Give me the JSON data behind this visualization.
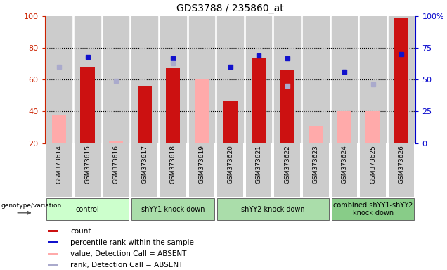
{
  "title": "GDS3788 / 235860_at",
  "samples": [
    "GSM373614",
    "GSM373615",
    "GSM373616",
    "GSM373617",
    "GSM373618",
    "GSM373619",
    "GSM373620",
    "GSM373621",
    "GSM373622",
    "GSM373623",
    "GSM373624",
    "GSM373625",
    "GSM373626"
  ],
  "count_values": [
    null,
    68,
    null,
    56,
    67,
    null,
    47,
    74,
    66,
    null,
    null,
    null,
    99
  ],
  "rank_values": [
    null,
    68,
    null,
    null,
    67,
    null,
    60,
    69,
    67,
    null,
    56,
    null,
    70
  ],
  "absent_value": [
    38,
    null,
    21,
    null,
    null,
    60,
    null,
    null,
    null,
    31,
    40,
    40,
    null
  ],
  "absent_rank": [
    60,
    null,
    49,
    null,
    63,
    null,
    null,
    null,
    45,
    null,
    null,
    46,
    null
  ],
  "groups": [
    {
      "label": "control",
      "start": 0,
      "end": 3
    },
    {
      "label": "shYY1 knock down",
      "start": 3,
      "end": 6
    },
    {
      "label": "shYY2 knock down",
      "start": 6,
      "end": 10
    },
    {
      "label": "combined shYY1-shYY2\nknock down",
      "start": 10,
      "end": 13
    }
  ],
  "y_left_ticks": [
    20,
    40,
    60,
    80,
    100
  ],
  "y_right_ticks": [
    0,
    25,
    50,
    75,
    100
  ],
  "y_right_labels": [
    "0",
    "25",
    "50",
    "75",
    "100%"
  ],
  "ylim_left": [
    20,
    100
  ],
  "ylim_right": [
    0,
    100
  ],
  "count_color": "#cc1111",
  "rank_color": "#1111cc",
  "absent_value_color": "#ffaaaa",
  "absent_rank_color": "#aaaacc",
  "bg_color": "#cccccc",
  "left_tick_color": "#cc2200",
  "right_tick_color": "#0000cc",
  "group_colors": [
    "#ccffcc",
    "#aaddaa",
    "#aaddaa",
    "#88cc88"
  ],
  "legend_items": [
    {
      "color": "#cc1111",
      "label": "count"
    },
    {
      "color": "#1111cc",
      "label": "percentile rank within the sample"
    },
    {
      "color": "#ffaaaa",
      "label": "value, Detection Call = ABSENT"
    },
    {
      "color": "#aaaacc",
      "label": "rank, Detection Call = ABSENT"
    }
  ]
}
